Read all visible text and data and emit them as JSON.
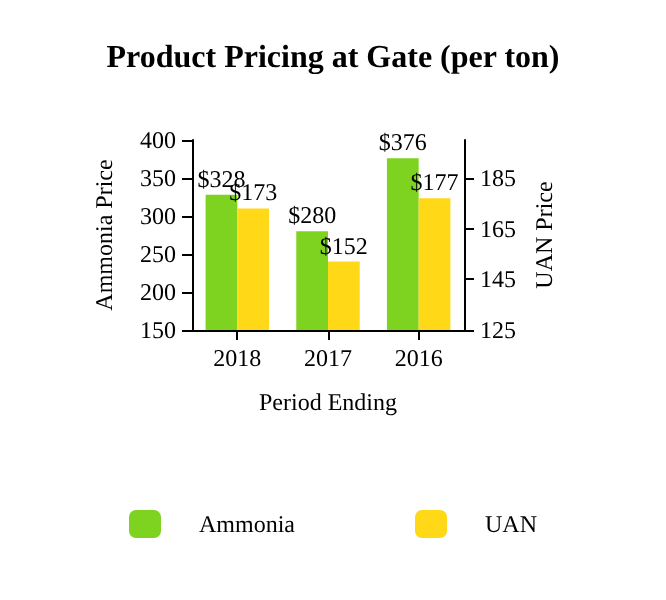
{
  "chart_data": {
    "type": "bar",
    "title": "Product Pricing at Gate (per ton)",
    "xlabel": "Period Ending",
    "ylabel": "Ammonia Price",
    "y2label": "UAN Price",
    "categories": [
      "2018",
      "2017",
      "2016"
    ],
    "series": [
      {
        "name": "Ammonia",
        "color": "#7ed321",
        "values": [
          328,
          280,
          376
        ],
        "value_labels": [
          "$328",
          "$280",
          "$376"
        ]
      },
      {
        "name": "UAN",
        "color": "#ffd817",
        "values": [
          173,
          152,
          177
        ],
        "value_labels": [
          "$173",
          "$152",
          "$177"
        ],
        "axis": "y2"
      }
    ],
    "ylim": [
      150,
      400
    ],
    "yticks": [
      150,
      200,
      250,
      300,
      350,
      400
    ],
    "y2lim": [
      125,
      200
    ],
    "y2ticks": [
      125,
      145,
      165,
      185
    ],
    "grid": false,
    "legend": "bottom"
  }
}
